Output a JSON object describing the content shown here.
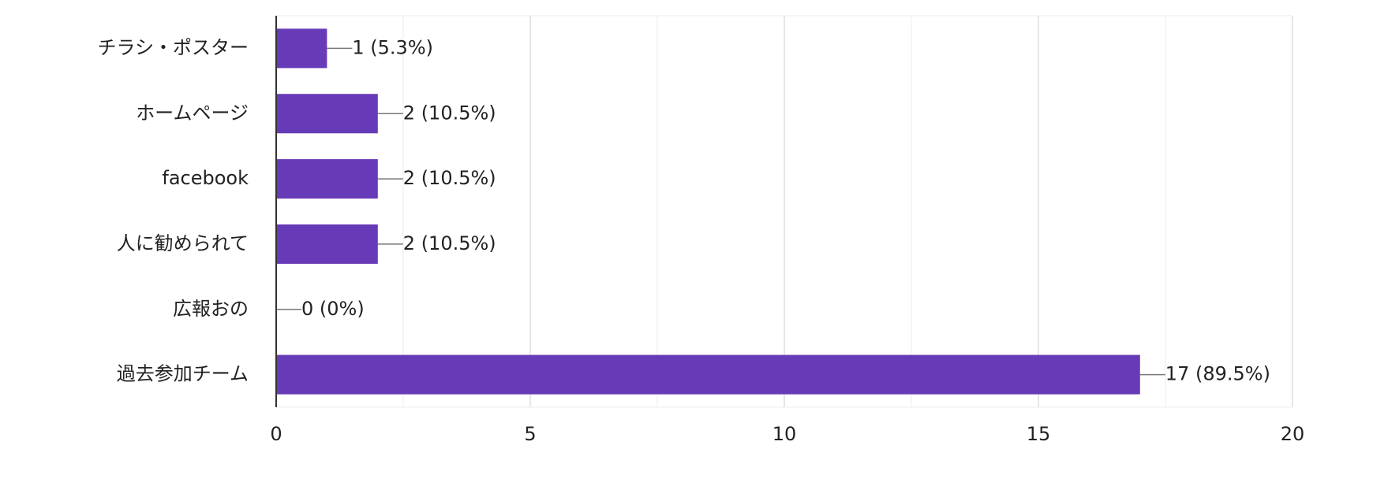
{
  "chart_data": {
    "type": "bar",
    "orientation": "horizontal",
    "categories": [
      "チラシ・ポスター",
      "ホームページ",
      "facebook",
      "人に勧められて",
      "広報おの",
      "過去参加チーム"
    ],
    "values": [
      1,
      2,
      2,
      2,
      0,
      17
    ],
    "value_labels": [
      "1 (5.3%)",
      "2 (10.5%)",
      "2 (10.5%)",
      "2 (10.5%)",
      "0 (0%)",
      "17 (89.5%)"
    ],
    "color": "#673ab7",
    "xlim": [
      0,
      20
    ],
    "xticks": [
      0,
      5,
      10,
      15,
      20
    ],
    "xminorticks": [
      2.5,
      7.5,
      12.5,
      17.5
    ],
    "grid": true
  }
}
